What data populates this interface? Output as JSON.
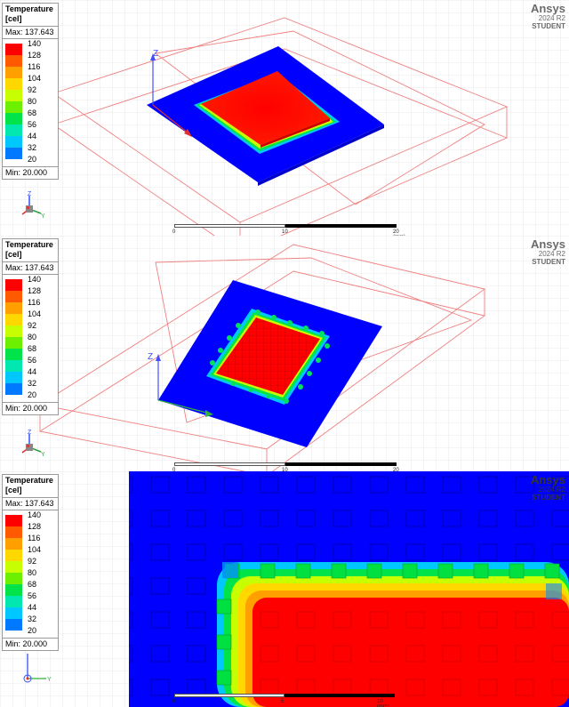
{
  "legend": {
    "title": "Temperature",
    "unit": "[cel]",
    "max_label": "Max: 137.643",
    "min_label": "Min: 20.000",
    "levels": [
      "140",
      "128",
      "116",
      "104",
      "92",
      "80",
      "68",
      "56",
      "44",
      "32",
      "20"
    ],
    "colors": [
      "#ff0000",
      "#ff5a00",
      "#ffa000",
      "#ffd800",
      "#c8ff00",
      "#6cf000",
      "#00e44a",
      "#00e8b0",
      "#00c8ff",
      "#0078ff",
      "#0000ff"
    ]
  },
  "brand": {
    "name": "Ansys",
    "version": "2024 R2",
    "edition": "STUDENT"
  },
  "triad": {
    "z": "Z",
    "y": "Y",
    "x": "X"
  },
  "ruler": {
    "t0": "0",
    "t1": "10",
    "t2": "20 (mm)"
  },
  "ruler3": {
    "t0": "0",
    "t1": "5",
    "t2": "10 (mm)"
  },
  "axis": {
    "z": "Z"
  }
}
